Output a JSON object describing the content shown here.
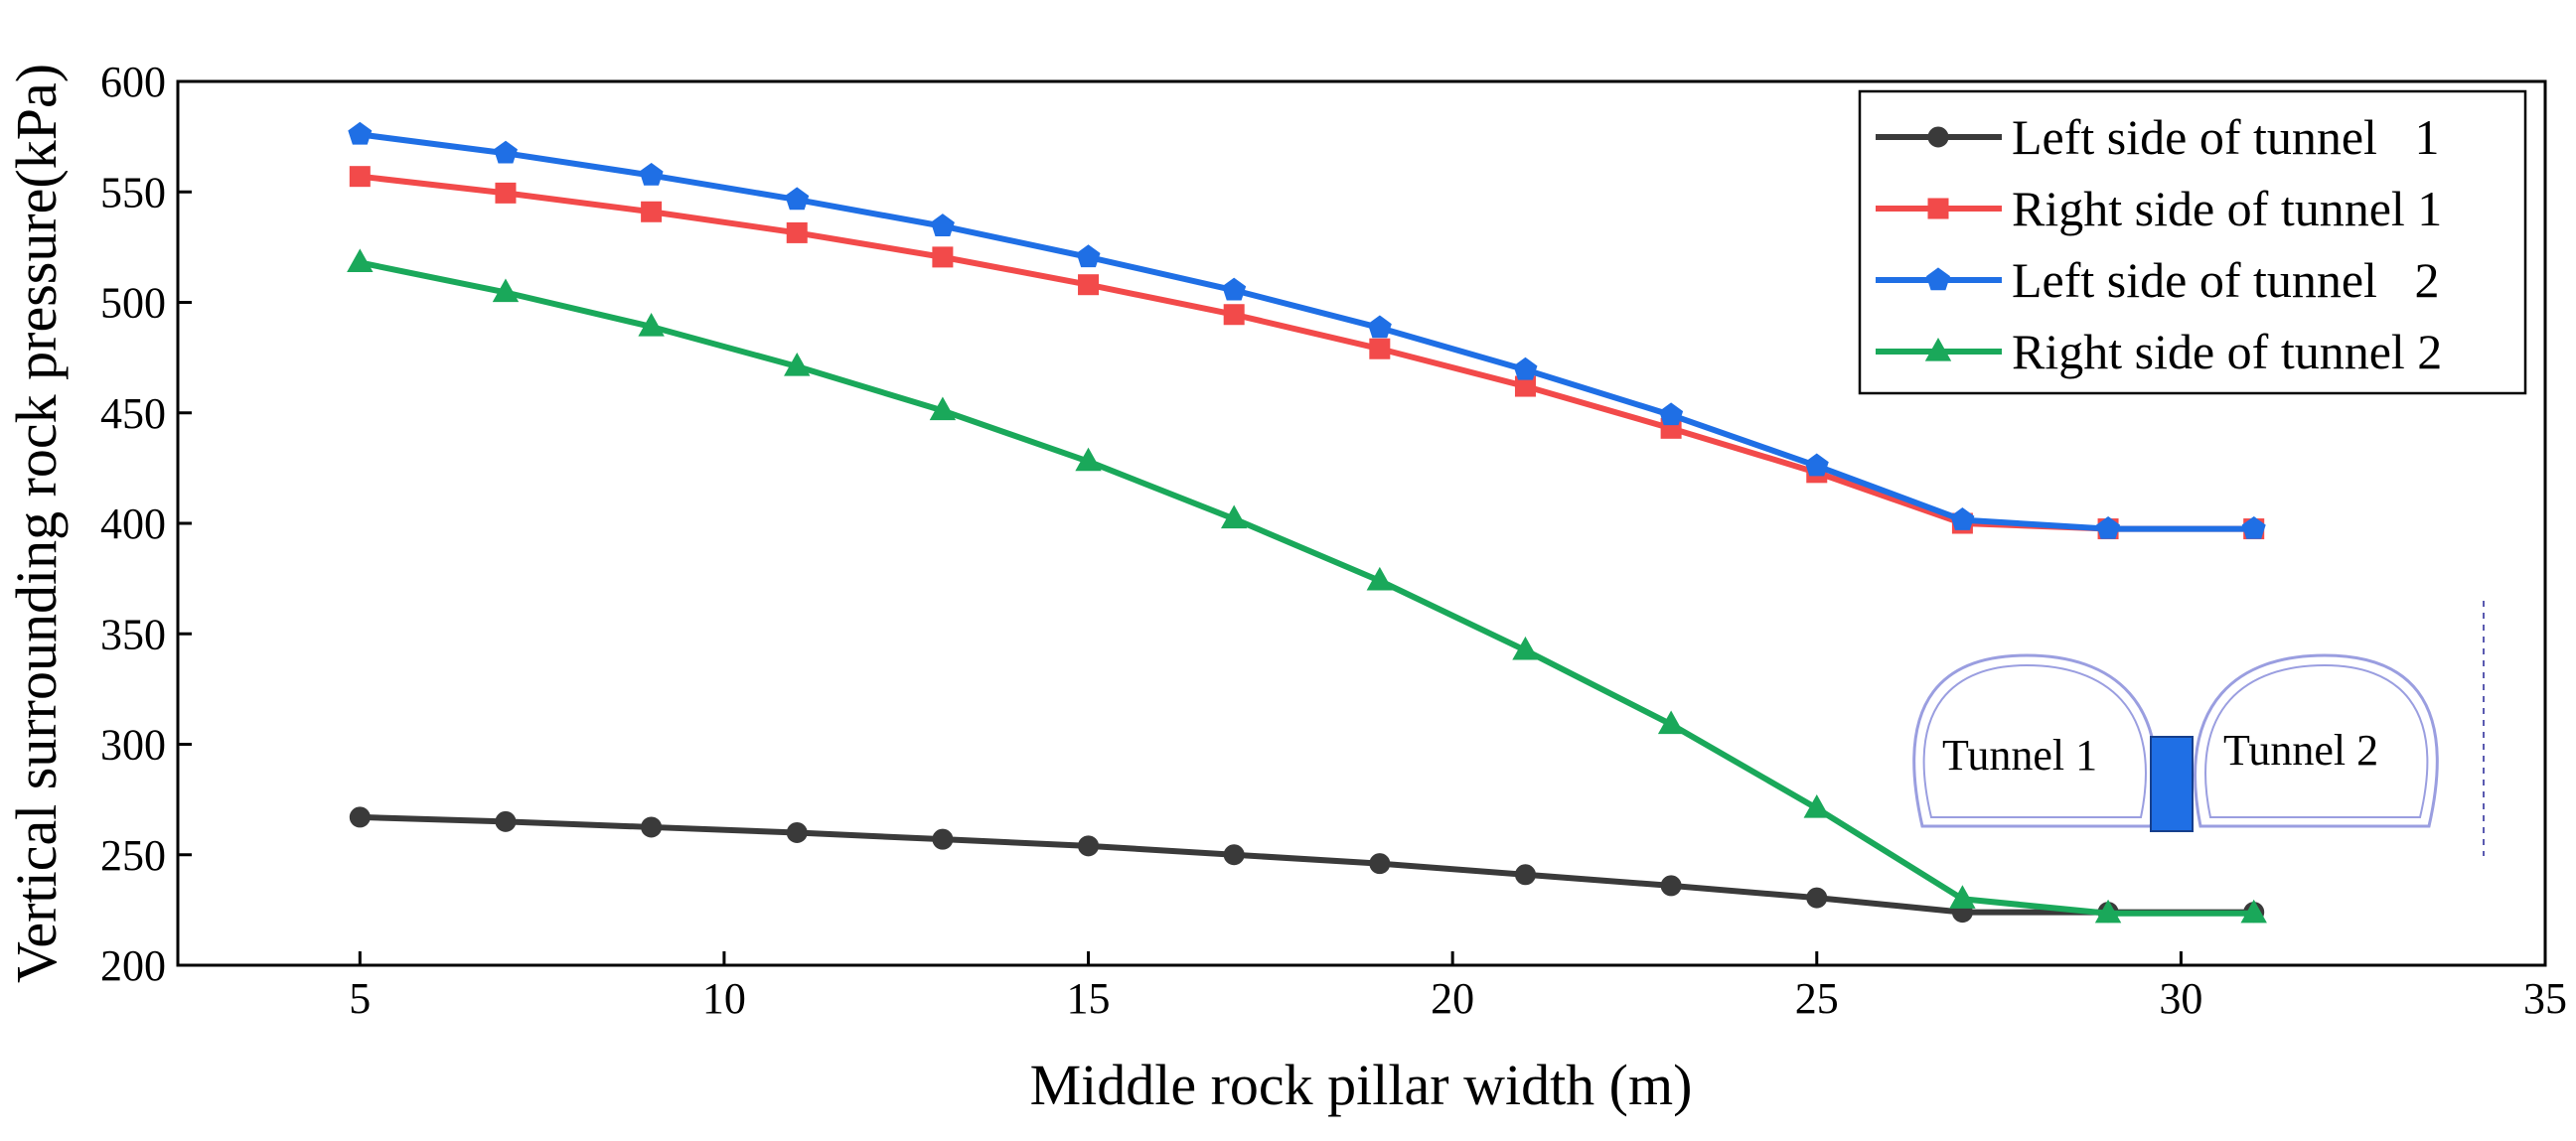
{
  "chart_data": {
    "type": "line",
    "title": "",
    "xlabel": "Middle rock pillar width (m)",
    "ylabel": "Vertical surrounding rock pressure(kPa)",
    "xlim": [
      2.5,
      35
    ],
    "ylim": [
      200,
      600
    ],
    "xticks": [
      5,
      10,
      15,
      20,
      25,
      30,
      35
    ],
    "yticks": [
      200,
      250,
      300,
      350,
      400,
      450,
      500,
      550,
      600
    ],
    "x": [
      5,
      7,
      9,
      11,
      13,
      15,
      17,
      19,
      21,
      23,
      25,
      27,
      29,
      31
    ],
    "legend_position": "top-right",
    "grid": false,
    "series": [
      {
        "name": "Left side of tunnel   1",
        "color": "#3a3a3a",
        "marker": "circle",
        "values": [
          267,
          265,
          262.5,
          260,
          257,
          254,
          250,
          246,
          241,
          236,
          230.5,
          224,
          224,
          224
        ]
      },
      {
        "name": "Right side of tunnel 1",
        "color": "#f24a4a",
        "marker": "square",
        "values": [
          557,
          549.5,
          541,
          531.5,
          520.5,
          508,
          494.5,
          479,
          462,
          443,
          423,
          400,
          397.5,
          397.5
        ]
      },
      {
        "name": "Left side of tunnel   2",
        "color": "#1f6fe5",
        "marker": "pentagon",
        "values": [
          576,
          567.5,
          557.5,
          546.5,
          534.5,
          520.5,
          505.5,
          488.5,
          469.5,
          449,
          426,
          401.5,
          397.5,
          397.5
        ]
      },
      {
        "name": "Right side of tunnel 2",
        "color": "#1aa85a",
        "marker": "triangle",
        "values": [
          518,
          504.5,
          489,
          471,
          451,
          428,
          402,
          374,
          342.5,
          309,
          271,
          230,
          223.5,
          223.5
        ]
      }
    ],
    "inset": {
      "label_left": "Tunnel 1",
      "label_right": "Tunnel 2"
    }
  }
}
